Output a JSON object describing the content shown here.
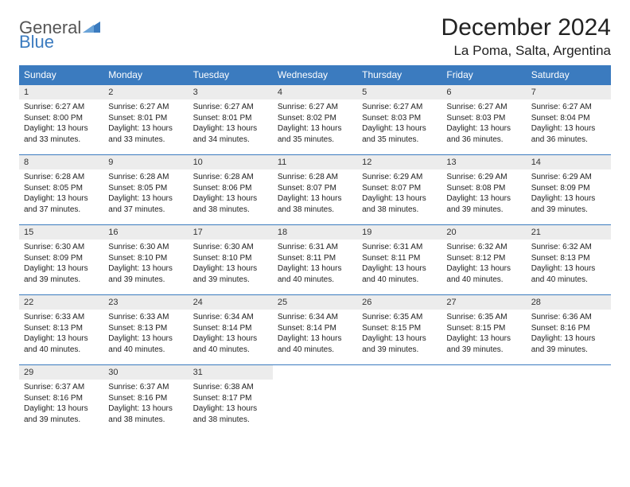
{
  "logo": {
    "word1": "General",
    "word2": "Blue"
  },
  "title": "December 2024",
  "location": "La Poma, Salta, Argentina",
  "colors": {
    "header_bg": "#3b7bbf",
    "header_fg": "#ffffff",
    "daynum_bg": "#ececec",
    "border": "#3b7bbf",
    "text": "#222222",
    "logo_gray": "#555555",
    "logo_blue": "#3b7bbf"
  },
  "day_names": [
    "Sunday",
    "Monday",
    "Tuesday",
    "Wednesday",
    "Thursday",
    "Friday",
    "Saturday"
  ],
  "weeks": [
    [
      {
        "n": "1",
        "sr": "6:27 AM",
        "ss": "8:00 PM",
        "dl": "13 hours and 33 minutes."
      },
      {
        "n": "2",
        "sr": "6:27 AM",
        "ss": "8:01 PM",
        "dl": "13 hours and 33 minutes."
      },
      {
        "n": "3",
        "sr": "6:27 AM",
        "ss": "8:01 PM",
        "dl": "13 hours and 34 minutes."
      },
      {
        "n": "4",
        "sr": "6:27 AM",
        "ss": "8:02 PM",
        "dl": "13 hours and 35 minutes."
      },
      {
        "n": "5",
        "sr": "6:27 AM",
        "ss": "8:03 PM",
        "dl": "13 hours and 35 minutes."
      },
      {
        "n": "6",
        "sr": "6:27 AM",
        "ss": "8:03 PM",
        "dl": "13 hours and 36 minutes."
      },
      {
        "n": "7",
        "sr": "6:27 AM",
        "ss": "8:04 PM",
        "dl": "13 hours and 36 minutes."
      }
    ],
    [
      {
        "n": "8",
        "sr": "6:28 AM",
        "ss": "8:05 PM",
        "dl": "13 hours and 37 minutes."
      },
      {
        "n": "9",
        "sr": "6:28 AM",
        "ss": "8:05 PM",
        "dl": "13 hours and 37 minutes."
      },
      {
        "n": "10",
        "sr": "6:28 AM",
        "ss": "8:06 PM",
        "dl": "13 hours and 38 minutes."
      },
      {
        "n": "11",
        "sr": "6:28 AM",
        "ss": "8:07 PM",
        "dl": "13 hours and 38 minutes."
      },
      {
        "n": "12",
        "sr": "6:29 AM",
        "ss": "8:07 PM",
        "dl": "13 hours and 38 minutes."
      },
      {
        "n": "13",
        "sr": "6:29 AM",
        "ss": "8:08 PM",
        "dl": "13 hours and 39 minutes."
      },
      {
        "n": "14",
        "sr": "6:29 AM",
        "ss": "8:09 PM",
        "dl": "13 hours and 39 minutes."
      }
    ],
    [
      {
        "n": "15",
        "sr": "6:30 AM",
        "ss": "8:09 PM",
        "dl": "13 hours and 39 minutes."
      },
      {
        "n": "16",
        "sr": "6:30 AM",
        "ss": "8:10 PM",
        "dl": "13 hours and 39 minutes."
      },
      {
        "n": "17",
        "sr": "6:30 AM",
        "ss": "8:10 PM",
        "dl": "13 hours and 39 minutes."
      },
      {
        "n": "18",
        "sr": "6:31 AM",
        "ss": "8:11 PM",
        "dl": "13 hours and 40 minutes."
      },
      {
        "n": "19",
        "sr": "6:31 AM",
        "ss": "8:11 PM",
        "dl": "13 hours and 40 minutes."
      },
      {
        "n": "20",
        "sr": "6:32 AM",
        "ss": "8:12 PM",
        "dl": "13 hours and 40 minutes."
      },
      {
        "n": "21",
        "sr": "6:32 AM",
        "ss": "8:13 PM",
        "dl": "13 hours and 40 minutes."
      }
    ],
    [
      {
        "n": "22",
        "sr": "6:33 AM",
        "ss": "8:13 PM",
        "dl": "13 hours and 40 minutes."
      },
      {
        "n": "23",
        "sr": "6:33 AM",
        "ss": "8:13 PM",
        "dl": "13 hours and 40 minutes."
      },
      {
        "n": "24",
        "sr": "6:34 AM",
        "ss": "8:14 PM",
        "dl": "13 hours and 40 minutes."
      },
      {
        "n": "25",
        "sr": "6:34 AM",
        "ss": "8:14 PM",
        "dl": "13 hours and 40 minutes."
      },
      {
        "n": "26",
        "sr": "6:35 AM",
        "ss": "8:15 PM",
        "dl": "13 hours and 39 minutes."
      },
      {
        "n": "27",
        "sr": "6:35 AM",
        "ss": "8:15 PM",
        "dl": "13 hours and 39 minutes."
      },
      {
        "n": "28",
        "sr": "6:36 AM",
        "ss": "8:16 PM",
        "dl": "13 hours and 39 minutes."
      }
    ],
    [
      {
        "n": "29",
        "sr": "6:37 AM",
        "ss": "8:16 PM",
        "dl": "13 hours and 39 minutes."
      },
      {
        "n": "30",
        "sr": "6:37 AM",
        "ss": "8:16 PM",
        "dl": "13 hours and 38 minutes."
      },
      {
        "n": "31",
        "sr": "6:38 AM",
        "ss": "8:17 PM",
        "dl": "13 hours and 38 minutes."
      },
      null,
      null,
      null,
      null
    ]
  ],
  "labels": {
    "sunrise": "Sunrise:",
    "sunset": "Sunset:",
    "daylight": "Daylight:"
  }
}
